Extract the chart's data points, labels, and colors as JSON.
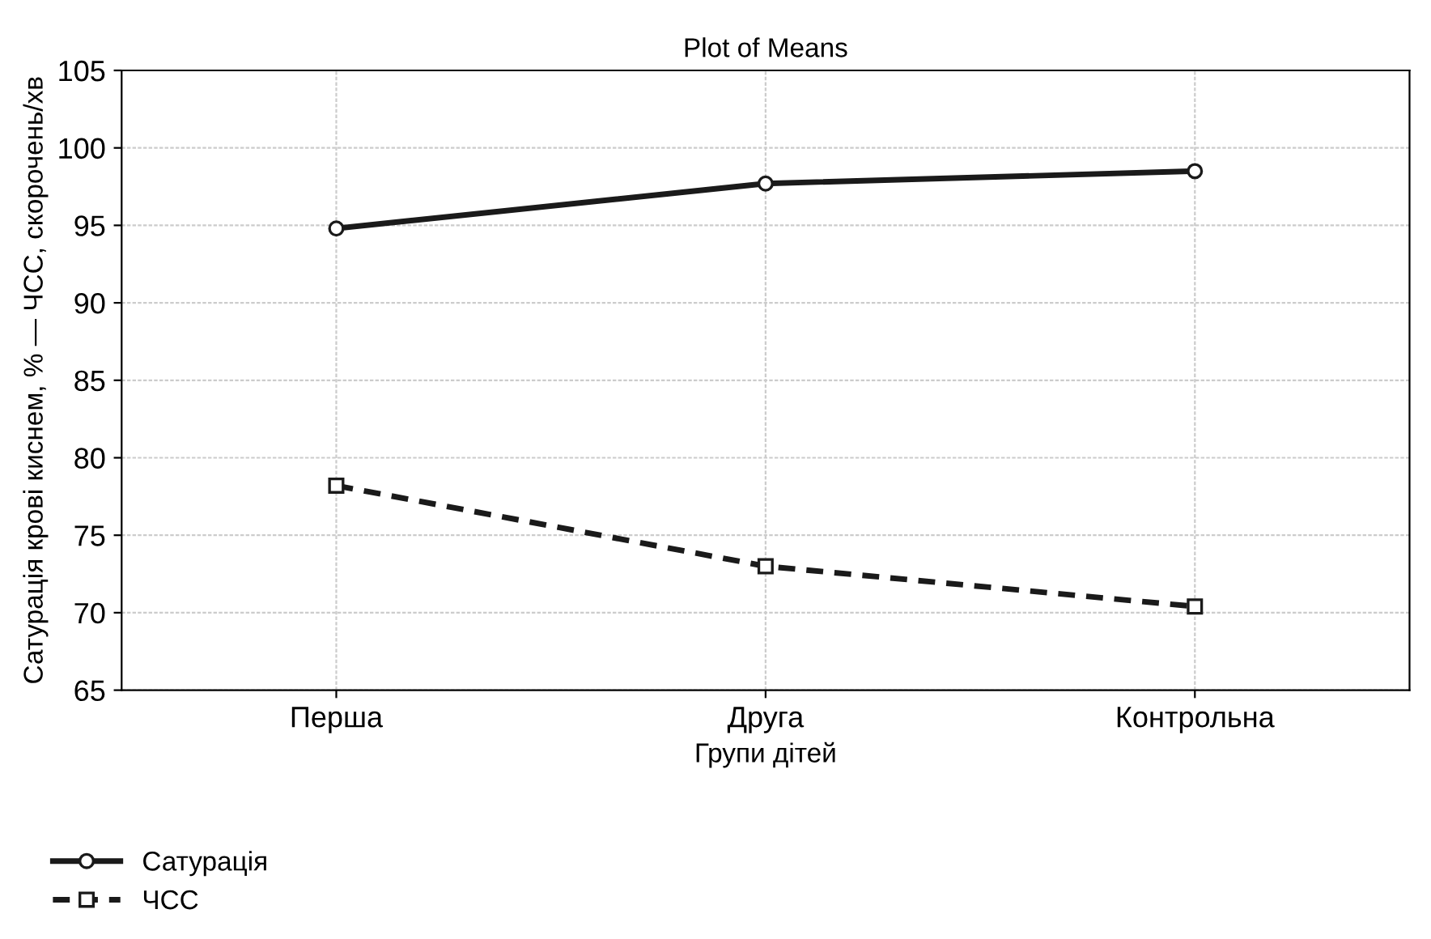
{
  "chart_data": {
    "type": "line",
    "title": "Plot of Means",
    "xlabel": "Групи дітей",
    "ylabel": "Сатурація крові киснем, % — ЧСС, скорочень/хв",
    "categories": [
      "Перша",
      "Друга",
      "Контрольна"
    ],
    "series": [
      {
        "name": "Сатурація",
        "color": "#1a1a1a",
        "values": [
          94.8,
          97.7,
          98.5
        ],
        "marker": "circle",
        "line_style": "solid"
      },
      {
        "name": "ЧСС",
        "color": "#1a1a1a",
        "values": [
          78.2,
          73.0,
          70.4
        ],
        "marker": "square",
        "line_style": "dashed"
      }
    ],
    "ylim": [
      65,
      105
    ],
    "yticks": [
      65,
      70,
      75,
      80,
      85,
      90,
      95,
      100,
      105
    ],
    "grid": true,
    "legend": "bottom left"
  }
}
